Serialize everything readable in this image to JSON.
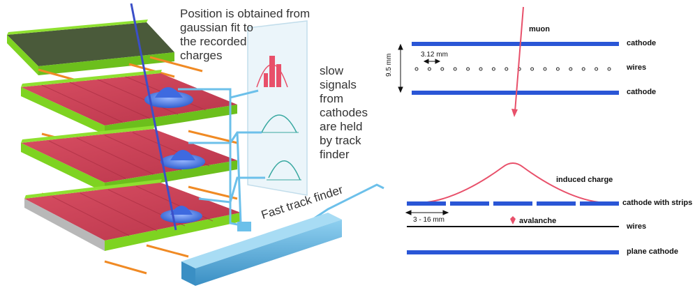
{
  "left_panel": {
    "position_caption": [
      "Position is obtained from",
      "gaussian fit to",
      "the recorded",
      "charges"
    ],
    "slow_signals_caption": [
      "slow",
      "signals",
      "from",
      "cathodes",
      "are held",
      "by track",
      "finder"
    ],
    "fast_track_finder": "Fast track finder"
  },
  "right_top": {
    "muon": "muon",
    "cathode_top": "cathode",
    "wires": "wires",
    "cathode_bottom": "cathode",
    "wire_pitch": "3.12 mm",
    "gap": "9.5 mm"
  },
  "right_bottom": {
    "induced_charge": "induced charge",
    "cathode_with_strips": "cathode with strips",
    "strip_width": "3 - 16 mm",
    "avalanche": "avalanche",
    "wires": "wires",
    "plane_cathode": "plane cathode"
  },
  "colors": {
    "cathode_blue": "#2a56d6",
    "pink": "#e8506a",
    "green": "#7ed321",
    "red_plane": "#c8384e",
    "orange_wire": "#f08a24",
    "charge_blue": "#4a78e0",
    "box_blue": "#4aa8dc"
  }
}
